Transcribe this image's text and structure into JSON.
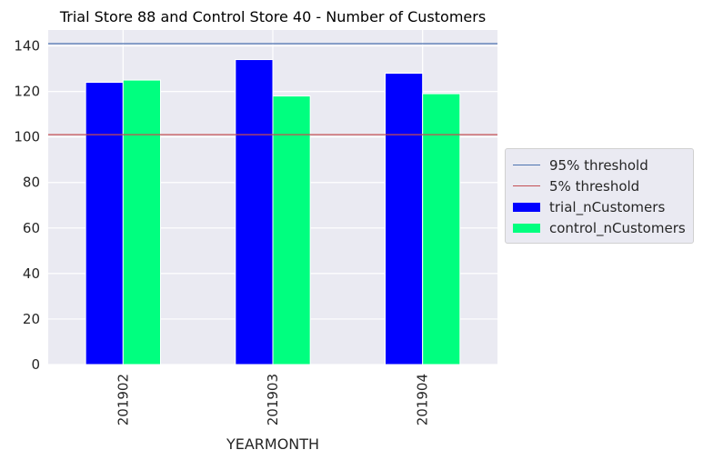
{
  "chart_data": {
    "type": "bar",
    "title": "Trial Store 88 and Control Store 40 - Number of Customers",
    "xlabel": "YEARMONTH",
    "ylabel": "",
    "categories": [
      "201902",
      "201903",
      "201904"
    ],
    "series": [
      {
        "name": "trial_nCustomers",
        "values": [
          124,
          134,
          128
        ],
        "color": "#0000ff"
      },
      {
        "name": "control_nCustomers",
        "values": [
          125,
          118,
          119
        ],
        "color": "#00ff7f"
      }
    ],
    "thresholds": [
      {
        "name": "95% threshold",
        "value": 141,
        "color": "#4c72b0"
      },
      {
        "name": "5% threshold",
        "value": 101,
        "color": "#c44e52"
      }
    ],
    "ylim": [
      0,
      147
    ],
    "yticks": [
      0,
      20,
      40,
      60,
      80,
      100,
      120,
      140
    ],
    "grid": true,
    "legend_position": "right",
    "colors": {
      "plot_background": "#eaeaf2",
      "grid": "#ffffff"
    }
  }
}
